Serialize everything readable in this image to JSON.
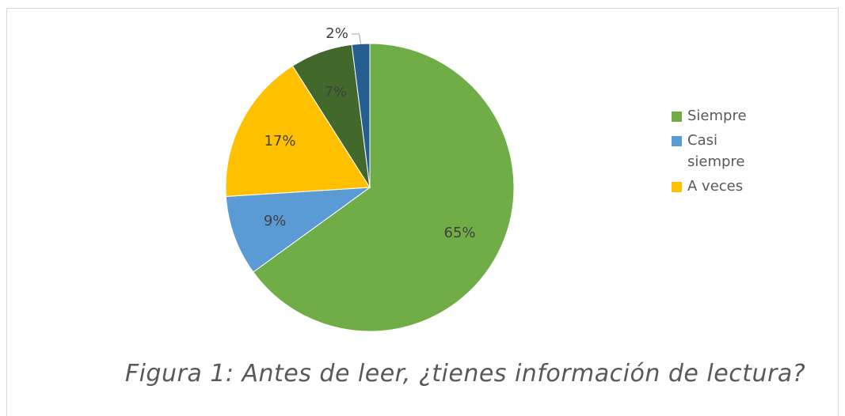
{
  "chart_data": {
    "type": "pie",
    "caption": "Figura 1: Antes de leer, ¿tienes información de lectura?",
    "categories": [
      "Siempre",
      "Casi siempre",
      "A veces",
      null,
      null
    ],
    "values": [
      65,
      9,
      17,
      7,
      2
    ],
    "value_labels": [
      "65%",
      "9%",
      "17%",
      "7%",
      "2%"
    ],
    "colors": [
      "#70ad47",
      "#5b9bd5",
      "#ffc000",
      "#43682b",
      "#255e91"
    ],
    "legend": "right"
  }
}
